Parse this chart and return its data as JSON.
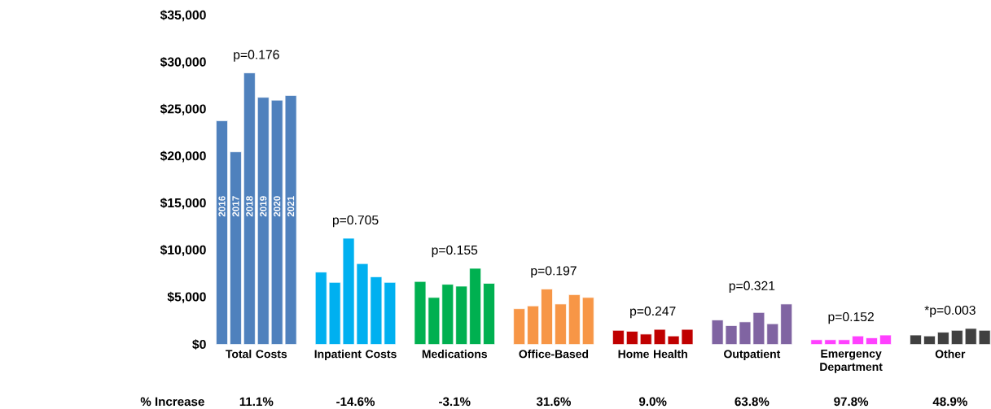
{
  "chart_data": {
    "type": "bar",
    "categories": [
      "Total Costs",
      "Inpatient Costs",
      "Medications",
      "Office-Based",
      "Home Health",
      "Outpatient",
      "Emergency Department",
      "Other"
    ],
    "series": [
      {
        "name": "2016",
        "colors": [
          "#4f81bd",
          "#00b0f0",
          "#00b050",
          "#f79646",
          "#c00000",
          "#8064a2",
          "#ff40ff",
          "#404040"
        ],
        "values": [
          23800,
          7700,
          6700,
          3800,
          1500,
          2600,
          500,
          1000
        ]
      },
      {
        "name": "2017",
        "colors": [
          "#4f81bd",
          "#00b0f0",
          "#00b050",
          "#f79646",
          "#c00000",
          "#8064a2",
          "#ff40ff",
          "#404040"
        ],
        "values": [
          20500,
          6600,
          5000,
          4100,
          1400,
          2000,
          500,
          900
        ]
      },
      {
        "name": "2018",
        "colors": [
          "#4f81bd",
          "#00b0f0",
          "#00b050",
          "#f79646",
          "#c00000",
          "#8064a2",
          "#ff40ff",
          "#404040"
        ],
        "values": [
          28900,
          11300,
          6400,
          5900,
          1100,
          2400,
          500,
          1300
        ]
      },
      {
        "name": "2019",
        "colors": [
          "#4f81bd",
          "#00b0f0",
          "#00b050",
          "#f79646",
          "#c00000",
          "#8064a2",
          "#ff40ff",
          "#404040"
        ],
        "values": [
          26300,
          8600,
          6200,
          4300,
          1600,
          3400,
          900,
          1500
        ]
      },
      {
        "name": "2020",
        "colors": [
          "#4f81bd",
          "#00b0f0",
          "#00b050",
          "#f79646",
          "#c00000",
          "#8064a2",
          "#ff40ff",
          "#404040"
        ],
        "values": [
          26000,
          7200,
          8100,
          5300,
          900,
          2200,
          700,
          1700
        ]
      },
      {
        "name": "2021",
        "colors": [
          "#4f81bd",
          "#00b0f0",
          "#00b050",
          "#f79646",
          "#c00000",
          "#8064a2",
          "#ff40ff",
          "#404040"
        ],
        "values": [
          26500,
          6600,
          6500,
          5000,
          1600,
          4300,
          1000,
          1500
        ]
      }
    ],
    "ylim": [
      0,
      35000
    ],
    "yticks": [
      {
        "value": 0,
        "label": "$0"
      },
      {
        "value": 5000,
        "label": "$5,000"
      },
      {
        "value": 10000,
        "label": "$10,000"
      },
      {
        "value": 15000,
        "label": "$15,000"
      },
      {
        "value": 20000,
        "label": "$20,000"
      },
      {
        "value": 25000,
        "label": "$25,000"
      },
      {
        "value": 30000,
        "label": "$30,000"
      },
      {
        "value": 35000,
        "label": "$35,000"
      }
    ],
    "annotations": [
      "p=0.176",
      "p=0.705",
      "p=0.155",
      "p=0.197",
      "p=0.247",
      "p=0.321",
      "p=0.152",
      "*p=0.003",
      "% Increase",
      "11.1%",
      "-14.6%",
      "-3.1%",
      "31.6%",
      "9.0%",
      "63.8%",
      "97.8%",
      "48.9%"
    ]
  }
}
